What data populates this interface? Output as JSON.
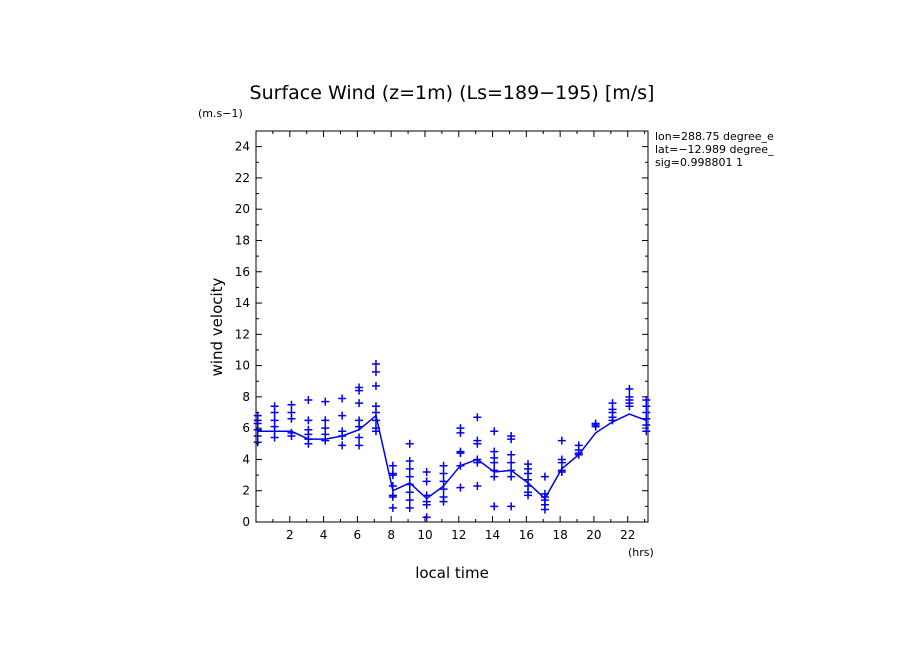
{
  "chart_data": {
    "type": "scatter",
    "title": "Surface Wind (z=1m) (Ls=189−195) [m/s]",
    "ylabel": "wind velocity",
    "yunits": "(m.s−1)",
    "xlabel": "local time",
    "xunits": "(hrs)",
    "xlim": [
      0,
      23.2
    ],
    "ylim": [
      0,
      25
    ],
    "xticks": [
      2,
      4,
      6,
      8,
      10,
      12,
      14,
      16,
      18,
      20,
      22
    ],
    "yticks": [
      0,
      2,
      4,
      6,
      8,
      10,
      12,
      14,
      16,
      18,
      20,
      22,
      24
    ],
    "info": [
      "lon=288.75 degree_e",
      "lat=−12.989 degree_",
      "sig=0.998801 1"
    ],
    "color": "#0000ee",
    "series": [
      {
        "name": "samples",
        "style": "plus",
        "points": [
          [
            0.1,
            6.8
          ],
          [
            0.1,
            6.5
          ],
          [
            0.1,
            6.3
          ],
          [
            0.1,
            5.9
          ],
          [
            0.1,
            5.5
          ],
          [
            0.1,
            5.1
          ],
          [
            1.1,
            7.4
          ],
          [
            1.1,
            7.0
          ],
          [
            1.1,
            6.5
          ],
          [
            1.1,
            6.1
          ],
          [
            1.1,
            5.8
          ],
          [
            1.1,
            5.4
          ],
          [
            2.1,
            7.5
          ],
          [
            2.1,
            7.0
          ],
          [
            2.1,
            6.6
          ],
          [
            2.1,
            5.7
          ],
          [
            2.1,
            5.5
          ],
          [
            3.1,
            7.8
          ],
          [
            3.1,
            6.5
          ],
          [
            3.1,
            5.9
          ],
          [
            3.1,
            5.6
          ],
          [
            3.1,
            5.3
          ],
          [
            3.1,
            5.0
          ],
          [
            4.1,
            7.7
          ],
          [
            4.1,
            6.5
          ],
          [
            4.1,
            6.0
          ],
          [
            4.1,
            5.6
          ],
          [
            4.1,
            5.2
          ],
          [
            5.1,
            7.9
          ],
          [
            5.1,
            6.8
          ],
          [
            5.1,
            5.8
          ],
          [
            5.1,
            5.5
          ],
          [
            5.1,
            4.9
          ],
          [
            6.1,
            8.6
          ],
          [
            6.1,
            8.4
          ],
          [
            6.1,
            7.6
          ],
          [
            6.1,
            6.5
          ],
          [
            6.1,
            6.1
          ],
          [
            6.1,
            5.4
          ],
          [
            6.1,
            4.9
          ],
          [
            7.1,
            10.1
          ],
          [
            7.1,
            9.6
          ],
          [
            7.1,
            8.7
          ],
          [
            7.1,
            7.4
          ],
          [
            7.1,
            7.0
          ],
          [
            7.1,
            6.5
          ],
          [
            7.1,
            6.0
          ],
          [
            7.1,
            5.8
          ],
          [
            8.1,
            3.6
          ],
          [
            8.1,
            3.1
          ],
          [
            8.1,
            3.0
          ],
          [
            8.1,
            2.3
          ],
          [
            8.1,
            1.7
          ],
          [
            8.1,
            1.6
          ],
          [
            8.1,
            0.9
          ],
          [
            9.1,
            5.0
          ],
          [
            9.1,
            3.9
          ],
          [
            9.1,
            3.4
          ],
          [
            9.1,
            2.9
          ],
          [
            9.1,
            2.4
          ],
          [
            9.1,
            1.9
          ],
          [
            9.1,
            1.4
          ],
          [
            9.1,
            0.9
          ],
          [
            10.1,
            3.2
          ],
          [
            10.1,
            2.6
          ],
          [
            10.1,
            1.7
          ],
          [
            10.1,
            1.3
          ],
          [
            10.1,
            1.1
          ],
          [
            10.1,
            0.3
          ],
          [
            11.1,
            3.6
          ],
          [
            11.1,
            3.1
          ],
          [
            11.1,
            2.6
          ],
          [
            11.1,
            2.1
          ],
          [
            11.1,
            1.6
          ],
          [
            11.1,
            1.3
          ],
          [
            12.1,
            6.0
          ],
          [
            12.1,
            5.7
          ],
          [
            12.1,
            4.5
          ],
          [
            12.1,
            4.4
          ],
          [
            12.1,
            3.6
          ],
          [
            12.1,
            2.2
          ],
          [
            13.1,
            6.7
          ],
          [
            13.1,
            5.2
          ],
          [
            13.1,
            5.0
          ],
          [
            13.1,
            4.0
          ],
          [
            13.1,
            3.8
          ],
          [
            13.1,
            2.3
          ],
          [
            14.1,
            5.8
          ],
          [
            14.1,
            4.5
          ],
          [
            14.1,
            4.1
          ],
          [
            14.1,
            3.8
          ],
          [
            14.1,
            3.3
          ],
          [
            14.1,
            2.9
          ],
          [
            14.1,
            1.0
          ],
          [
            15.1,
            5.5
          ],
          [
            15.1,
            5.3
          ],
          [
            15.1,
            4.3
          ],
          [
            15.1,
            3.8
          ],
          [
            15.1,
            3.3
          ],
          [
            15.1,
            2.9
          ],
          [
            15.1,
            1.0
          ],
          [
            16.1,
            3.7
          ],
          [
            16.1,
            3.4
          ],
          [
            16.1,
            3.1
          ],
          [
            16.1,
            2.7
          ],
          [
            16.1,
            2.3
          ],
          [
            16.1,
            1.9
          ],
          [
            16.1,
            1.7
          ],
          [
            17.1,
            2.9
          ],
          [
            17.1,
            1.8
          ],
          [
            17.1,
            1.6
          ],
          [
            17.1,
            1.4
          ],
          [
            17.1,
            1.1
          ],
          [
            17.1,
            0.8
          ],
          [
            18.1,
            5.2
          ],
          [
            18.1,
            4.0
          ],
          [
            18.1,
            3.8
          ],
          [
            18.1,
            3.3
          ],
          [
            18.1,
            3.2
          ],
          [
            19.1,
            4.9
          ],
          [
            19.1,
            4.6
          ],
          [
            19.1,
            4.4
          ],
          [
            19.1,
            4.3
          ],
          [
            20.1,
            6.3
          ],
          [
            20.1,
            6.2
          ],
          [
            20.1,
            6.1
          ],
          [
            21.1,
            7.6
          ],
          [
            21.1,
            7.2
          ],
          [
            21.1,
            7.0
          ],
          [
            21.1,
            6.7
          ],
          [
            21.1,
            6.5
          ],
          [
            22.1,
            8.5
          ],
          [
            22.1,
            8.0
          ],
          [
            22.1,
            7.8
          ],
          [
            22.1,
            7.6
          ],
          [
            22.1,
            7.4
          ],
          [
            23.1,
            7.8
          ],
          [
            23.1,
            7.4
          ],
          [
            23.1,
            7.0
          ],
          [
            23.1,
            6.6
          ],
          [
            23.1,
            6.2
          ],
          [
            23.1,
            5.8
          ]
        ]
      },
      {
        "name": "mean",
        "style": "line",
        "x": [
          0.1,
          1.1,
          2.1,
          3.1,
          4.1,
          5.1,
          6.1,
          7.1,
          8.1,
          9.1,
          10.1,
          11.1,
          12.1,
          13.1,
          14.1,
          15.1,
          16.1,
          17.1,
          18.1,
          19.1,
          20.1,
          21.1,
          22.1,
          23.1
        ],
        "y": [
          5.8,
          5.8,
          5.8,
          5.3,
          5.3,
          5.5,
          5.9,
          6.8,
          2.0,
          2.5,
          1.5,
          2.3,
          3.6,
          4.0,
          3.2,
          3.3,
          2.5,
          1.5,
          3.4,
          4.3,
          5.7,
          6.4,
          6.9,
          6.5
        ]
      }
    ]
  }
}
